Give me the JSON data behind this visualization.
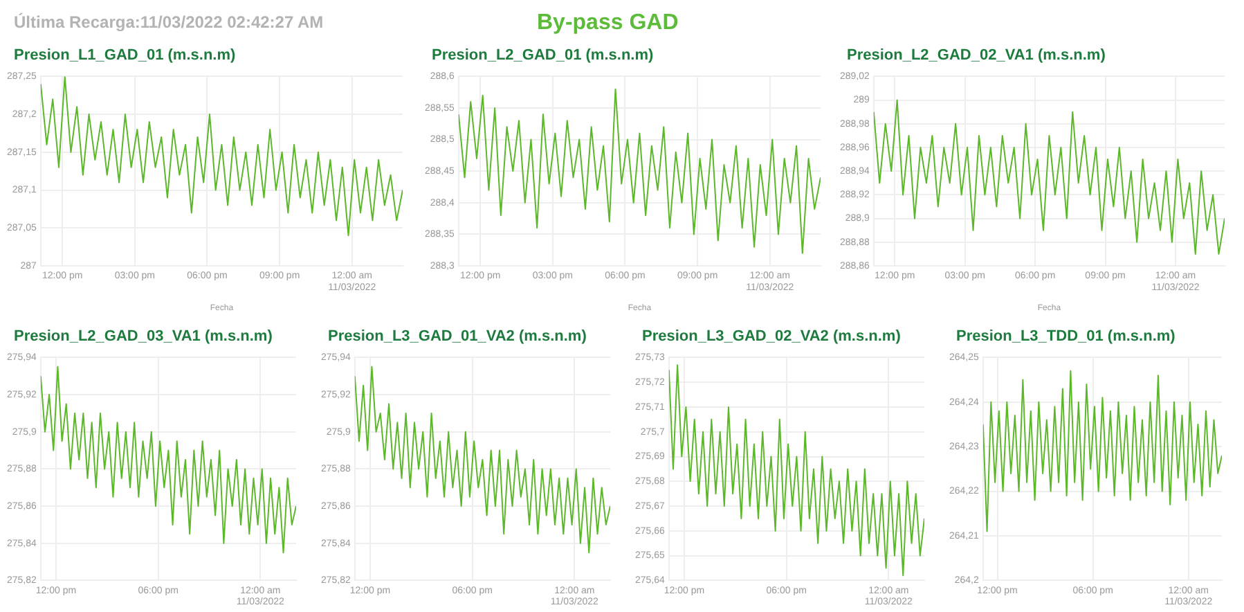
{
  "chart_data": [
    {
      "type": "line",
      "title": "Presion_L1_GAD_01 (m.s.n.m)",
      "xlabel": "Fecha",
      "annotations": [
        "Última Recarga:11/03/2022 02:42:27 AM",
        "By-pass GAD"
      ],
      "grid": true,
      "legend": false,
      "marker": "none",
      "xlim": [
        11.1,
        26.1
      ],
      "xticks": [
        {
          "value": 12,
          "label": "12:00 pm"
        },
        {
          "value": 15,
          "label": "03:00 pm"
        },
        {
          "value": 18,
          "label": "06:00 pm"
        },
        {
          "value": 21,
          "label": "09:00 pm"
        },
        {
          "value": 24,
          "label": "12:00 am\n11/03/2022"
        }
      ],
      "ylim": [
        287,
        287.25
      ],
      "yticks": [
        {
          "value": 287,
          "label": "287"
        },
        {
          "value": 287.05,
          "label": "287,05"
        },
        {
          "value": 287.1,
          "label": "287,1"
        },
        {
          "value": 287.15,
          "label": "287,15"
        },
        {
          "value": 287.2,
          "label": "287,2"
        },
        {
          "value": 287.25,
          "label": "287,25"
        }
      ],
      "x": [
        11.1,
        11.35,
        11.6,
        11.85,
        12.1,
        12.35,
        12.6,
        12.85,
        13.1,
        13.35,
        13.6,
        13.85,
        14.1,
        14.35,
        14.6,
        14.85,
        15.1,
        15.35,
        15.6,
        15.85,
        16.1,
        16.35,
        16.6,
        16.85,
        17.1,
        17.35,
        17.6,
        17.85,
        18.1,
        18.35,
        18.6,
        18.85,
        19.1,
        19.35,
        19.6,
        19.85,
        20.1,
        20.35,
        20.6,
        20.85,
        21.1,
        21.35,
        21.6,
        21.85,
        22.1,
        22.35,
        22.6,
        22.85,
        23.1,
        23.35,
        23.6,
        23.85,
        24.1,
        24.35,
        24.6,
        24.85,
        25.1,
        25.35,
        25.6,
        25.85,
        26.1
      ],
      "series": [
        {
          "color": "#5cb82a",
          "values": [
            287.24,
            287.16,
            287.22,
            287.13,
            287.25,
            287.15,
            287.21,
            287.12,
            287.2,
            287.14,
            287.19,
            287.12,
            287.18,
            287.11,
            287.2,
            287.13,
            287.18,
            287.11,
            287.19,
            287.13,
            287.17,
            287.09,
            287.18,
            287.12,
            287.16,
            287.07,
            287.17,
            287.11,
            287.2,
            287.1,
            287.16,
            287.08,
            287.17,
            287.1,
            287.15,
            287.08,
            287.16,
            287.09,
            287.18,
            287.1,
            287.15,
            287.07,
            287.16,
            287.09,
            287.14,
            287.07,
            287.15,
            287.08,
            287.14,
            287.06,
            287.13,
            287.04,
            287.14,
            287.07,
            287.13,
            287.06,
            287.14,
            287.08,
            287.12,
            287.06,
            287.1
          ]
        }
      ]
    },
    {
      "type": "line",
      "title": "Presion_L2_GAD_01 (m.s.n.m)",
      "xlabel": "Fecha",
      "grid": true,
      "legend": false,
      "marker": "none",
      "xlim": [
        11.1,
        26.1
      ],
      "xticks": [
        {
          "value": 12,
          "label": "12:00 pm"
        },
        {
          "value": 15,
          "label": "03:00 pm"
        },
        {
          "value": 18,
          "label": "06:00 pm"
        },
        {
          "value": 21,
          "label": "09:00 pm"
        },
        {
          "value": 24,
          "label": "12:00 am\n11/03/2022"
        }
      ],
      "ylim": [
        288.3,
        288.6
      ],
      "yticks": [
        {
          "value": 288.3,
          "label": "288,3"
        },
        {
          "value": 288.35,
          "label": "288,35"
        },
        {
          "value": 288.4,
          "label": "288,4"
        },
        {
          "value": 288.45,
          "label": "288,45"
        },
        {
          "value": 288.5,
          "label": "288,5"
        },
        {
          "value": 288.55,
          "label": "288,55"
        },
        {
          "value": 288.6,
          "label": "288,6"
        }
      ],
      "x": [
        11.1,
        11.35,
        11.6,
        11.85,
        12.1,
        12.35,
        12.6,
        12.85,
        13.1,
        13.35,
        13.6,
        13.85,
        14.1,
        14.35,
        14.6,
        14.85,
        15.1,
        15.35,
        15.6,
        15.85,
        16.1,
        16.35,
        16.6,
        16.85,
        17.1,
        17.35,
        17.6,
        17.85,
        18.1,
        18.35,
        18.6,
        18.85,
        19.1,
        19.35,
        19.6,
        19.85,
        20.1,
        20.35,
        20.6,
        20.85,
        21.1,
        21.35,
        21.6,
        21.85,
        22.1,
        22.35,
        22.6,
        22.85,
        23.1,
        23.35,
        23.6,
        23.85,
        24.1,
        24.35,
        24.6,
        24.85,
        25.1,
        25.35,
        25.6,
        25.85,
        26.1
      ],
      "series": [
        {
          "color": "#5cb82a",
          "values": [
            288.54,
            288.44,
            288.56,
            288.47,
            288.57,
            288.42,
            288.55,
            288.38,
            288.52,
            288.45,
            288.53,
            288.4,
            288.5,
            288.36,
            288.54,
            288.43,
            288.51,
            288.41,
            288.53,
            288.44,
            288.5,
            288.39,
            288.52,
            288.42,
            288.49,
            288.37,
            288.58,
            288.43,
            288.5,
            288.4,
            288.51,
            288.38,
            288.49,
            288.42,
            288.52,
            288.36,
            288.48,
            288.4,
            288.51,
            288.35,
            288.47,
            288.39,
            288.5,
            288.34,
            288.46,
            288.4,
            288.49,
            288.36,
            288.47,
            288.33,
            288.46,
            288.38,
            288.5,
            288.35,
            288.47,
            288.4,
            288.49,
            288.32,
            288.47,
            288.39,
            288.44
          ]
        }
      ]
    },
    {
      "type": "line",
      "title": "Presion_L2_GAD_02_VA1 (m.s.n.m)",
      "xlabel": "Fecha",
      "grid": true,
      "legend": false,
      "marker": "none",
      "xlim": [
        11.1,
        26.1
      ],
      "xticks": [
        {
          "value": 12,
          "label": "12:00 pm"
        },
        {
          "value": 15,
          "label": "03:00 pm"
        },
        {
          "value": 18,
          "label": "06:00 pm"
        },
        {
          "value": 21,
          "label": "09:00 pm"
        },
        {
          "value": 24,
          "label": "12:00 am\n11/03/2022"
        }
      ],
      "ylim": [
        288.86,
        289.02
      ],
      "yticks": [
        {
          "value": 288.86,
          "label": "288,86"
        },
        {
          "value": 288.88,
          "label": "288,88"
        },
        {
          "value": 288.9,
          "label": "288,9"
        },
        {
          "value": 288.92,
          "label": "288,92"
        },
        {
          "value": 288.94,
          "label": "288,94"
        },
        {
          "value": 288.96,
          "label": "288,96"
        },
        {
          "value": 288.98,
          "label": "288,98"
        },
        {
          "value": 289,
          "label": "289"
        },
        {
          "value": 289.02,
          "label": "289,02"
        }
      ],
      "x": [
        11.1,
        11.35,
        11.6,
        11.85,
        12.1,
        12.35,
        12.6,
        12.85,
        13.1,
        13.35,
        13.6,
        13.85,
        14.1,
        14.35,
        14.6,
        14.85,
        15.1,
        15.35,
        15.6,
        15.85,
        16.1,
        16.35,
        16.6,
        16.85,
        17.1,
        17.35,
        17.6,
        17.85,
        18.1,
        18.35,
        18.6,
        18.85,
        19.1,
        19.35,
        19.6,
        19.85,
        20.1,
        20.35,
        20.6,
        20.85,
        21.1,
        21.35,
        21.6,
        21.85,
        22.1,
        22.35,
        22.6,
        22.85,
        23.1,
        23.35,
        23.6,
        23.85,
        24.1,
        24.35,
        24.6,
        24.85,
        25.1,
        25.35,
        25.6,
        25.85,
        26.1
      ],
      "series": [
        {
          "color": "#5cb82a",
          "values": [
            288.99,
            288.93,
            288.98,
            288.94,
            289.0,
            288.92,
            288.97,
            288.9,
            288.96,
            288.93,
            288.97,
            288.91,
            288.96,
            288.93,
            288.98,
            288.92,
            288.96,
            288.89,
            288.97,
            288.92,
            288.96,
            288.91,
            288.97,
            288.93,
            288.96,
            288.9,
            288.98,
            288.92,
            288.95,
            288.89,
            288.97,
            288.92,
            288.96,
            288.9,
            288.99,
            288.93,
            288.97,
            288.92,
            288.96,
            288.89,
            288.95,
            288.91,
            288.96,
            288.9,
            288.94,
            288.88,
            288.95,
            288.9,
            288.93,
            288.89,
            288.94,
            288.88,
            288.95,
            288.9,
            288.93,
            288.87,
            288.94,
            288.89,
            288.92,
            288.87,
            288.9
          ]
        }
      ]
    },
    {
      "type": "line",
      "title": "Presion_L2_GAD_03_VA1 (m.s.n.m)",
      "grid": true,
      "legend": false,
      "marker": "none",
      "xlim": [
        11.1,
        26.1
      ],
      "xticks": [
        {
          "value": 12,
          "label": "12:00 pm"
        },
        {
          "value": 18,
          "label": "06:00 pm"
        },
        {
          "value": 24,
          "label": "12:00 am\n11/03/2022"
        }
      ],
      "ylim": [
        275.82,
        275.94
      ],
      "yticks": [
        {
          "value": 275.82,
          "label": "275,82"
        },
        {
          "value": 275.84,
          "label": "275,84"
        },
        {
          "value": 275.86,
          "label": "275,86"
        },
        {
          "value": 275.88,
          "label": "275,88"
        },
        {
          "value": 275.9,
          "label": "275,9"
        },
        {
          "value": 275.92,
          "label": "275,92"
        },
        {
          "value": 275.94,
          "label": "275,94"
        }
      ],
      "x": [
        11.1,
        11.35,
        11.6,
        11.85,
        12.1,
        12.35,
        12.6,
        12.85,
        13.1,
        13.35,
        13.6,
        13.85,
        14.1,
        14.35,
        14.6,
        14.85,
        15.1,
        15.35,
        15.6,
        15.85,
        16.1,
        16.35,
        16.6,
        16.85,
        17.1,
        17.35,
        17.6,
        17.85,
        18.1,
        18.35,
        18.6,
        18.85,
        19.1,
        19.35,
        19.6,
        19.85,
        20.1,
        20.35,
        20.6,
        20.85,
        21.1,
        21.35,
        21.6,
        21.85,
        22.1,
        22.35,
        22.6,
        22.85,
        23.1,
        23.35,
        23.6,
        23.85,
        24.1,
        24.35,
        24.6,
        24.85,
        25.1,
        25.35,
        25.6,
        25.85,
        26.1
      ],
      "series": [
        {
          "color": "#5cb82a",
          "values": [
            275.93,
            275.9,
            275.92,
            275.89,
            275.935,
            275.895,
            275.915,
            275.88,
            275.91,
            275.885,
            275.91,
            275.875,
            275.905,
            275.87,
            275.91,
            275.88,
            275.9,
            275.865,
            275.905,
            275.875,
            275.9,
            275.87,
            275.905,
            275.865,
            275.895,
            275.875,
            275.9,
            275.86,
            275.895,
            275.87,
            275.89,
            275.85,
            275.895,
            275.865,
            275.885,
            275.845,
            275.89,
            275.86,
            275.895,
            275.865,
            275.885,
            275.855,
            275.89,
            275.84,
            275.88,
            275.86,
            275.885,
            275.85,
            275.88,
            275.845,
            275.875,
            275.85,
            275.88,
            275.84,
            275.875,
            275.845,
            275.87,
            275.835,
            275.875,
            275.85,
            275.86
          ]
        }
      ]
    },
    {
      "type": "line",
      "title": "Presion_L3_GAD_01_VA2 (m.s.n.m)",
      "grid": true,
      "legend": false,
      "marker": "none",
      "xlim": [
        11.1,
        26.1
      ],
      "xticks": [
        {
          "value": 12,
          "label": "12:00 pm"
        },
        {
          "value": 18,
          "label": "06:00 pm"
        },
        {
          "value": 24,
          "label": "12:00 am\n11/03/2022"
        }
      ],
      "ylim": [
        275.82,
        275.94
      ],
      "yticks": [
        {
          "value": 275.82,
          "label": "275,82"
        },
        {
          "value": 275.84,
          "label": "275,84"
        },
        {
          "value": 275.86,
          "label": "275,86"
        },
        {
          "value": 275.88,
          "label": "275,88"
        },
        {
          "value": 275.9,
          "label": "275,9"
        },
        {
          "value": 275.92,
          "label": "275,92"
        },
        {
          "value": 275.94,
          "label": "275,94"
        }
      ],
      "x": [
        11.1,
        11.35,
        11.6,
        11.85,
        12.1,
        12.35,
        12.6,
        12.85,
        13.1,
        13.35,
        13.6,
        13.85,
        14.1,
        14.35,
        14.6,
        14.85,
        15.1,
        15.35,
        15.6,
        15.85,
        16.1,
        16.35,
        16.6,
        16.85,
        17.1,
        17.35,
        17.6,
        17.85,
        18.1,
        18.35,
        18.6,
        18.85,
        19.1,
        19.35,
        19.6,
        19.85,
        20.1,
        20.35,
        20.6,
        20.85,
        21.1,
        21.35,
        21.6,
        21.85,
        22.1,
        22.35,
        22.6,
        22.85,
        23.1,
        23.35,
        23.6,
        23.85,
        24.1,
        24.35,
        24.6,
        24.85,
        25.1,
        25.35,
        25.6,
        25.85,
        26.1
      ],
      "series": [
        {
          "color": "#5cb82a",
          "values": [
            275.93,
            275.895,
            275.925,
            275.89,
            275.935,
            275.9,
            275.91,
            275.885,
            275.915,
            275.88,
            275.905,
            275.875,
            275.91,
            275.87,
            275.905,
            275.88,
            275.9,
            275.865,
            275.91,
            275.875,
            275.895,
            275.865,
            275.9,
            275.87,
            275.89,
            275.86,
            275.9,
            275.865,
            275.895,
            275.87,
            275.885,
            275.855,
            275.89,
            275.86,
            275.89,
            275.845,
            275.885,
            275.86,
            275.89,
            275.865,
            275.88,
            275.85,
            275.885,
            275.845,
            275.88,
            275.855,
            275.88,
            275.85,
            275.875,
            275.845,
            275.875,
            275.85,
            275.88,
            275.84,
            275.87,
            275.835,
            275.875,
            275.845,
            275.87,
            275.85,
            275.86
          ]
        }
      ]
    },
    {
      "type": "line",
      "title": "Presion_L3_GAD_02_VA2 (m.s.n.m)",
      "grid": true,
      "legend": false,
      "marker": "none",
      "xlim": [
        11.1,
        26.1
      ],
      "xticks": [
        {
          "value": 12,
          "label": "12:00 pm"
        },
        {
          "value": 18,
          "label": "06:00 pm"
        },
        {
          "value": 24,
          "label": "12:00 am\n11/03/2022"
        }
      ],
      "ylim": [
        275.64,
        275.73
      ],
      "yticks": [
        {
          "value": 275.64,
          "label": "275,64"
        },
        {
          "value": 275.65,
          "label": "275,65"
        },
        {
          "value": 275.66,
          "label": "275,66"
        },
        {
          "value": 275.67,
          "label": "275,67"
        },
        {
          "value": 275.68,
          "label": "275,68"
        },
        {
          "value": 275.69,
          "label": "275,69"
        },
        {
          "value": 275.7,
          "label": "275,7"
        },
        {
          "value": 275.71,
          "label": "275,71"
        },
        {
          "value": 275.72,
          "label": "275,72"
        },
        {
          "value": 275.73,
          "label": "275,73"
        }
      ],
      "x": [
        11.1,
        11.35,
        11.6,
        11.85,
        12.1,
        12.35,
        12.6,
        12.85,
        13.1,
        13.35,
        13.6,
        13.85,
        14.1,
        14.35,
        14.6,
        14.85,
        15.1,
        15.35,
        15.6,
        15.85,
        16.1,
        16.35,
        16.6,
        16.85,
        17.1,
        17.35,
        17.6,
        17.85,
        18.1,
        18.35,
        18.6,
        18.85,
        19.1,
        19.35,
        19.6,
        19.85,
        20.1,
        20.35,
        20.6,
        20.85,
        21.1,
        21.35,
        21.6,
        21.85,
        22.1,
        22.35,
        22.6,
        22.85,
        23.1,
        23.35,
        23.6,
        23.85,
        24.1,
        24.35,
        24.6,
        24.85,
        25.1,
        25.35,
        25.6,
        25.85,
        26.1
      ],
      "series": [
        {
          "color": "#5cb82a",
          "values": [
            275.725,
            275.685,
            275.727,
            275.69,
            275.71,
            275.68,
            275.705,
            275.675,
            275.7,
            275.67,
            275.705,
            275.675,
            275.7,
            275.67,
            275.71,
            275.675,
            275.695,
            275.665,
            275.705,
            275.67,
            275.695,
            275.665,
            275.7,
            275.67,
            275.69,
            275.66,
            275.705,
            275.665,
            275.695,
            275.67,
            275.69,
            275.66,
            275.7,
            275.665,
            275.685,
            275.655,
            275.69,
            275.66,
            275.685,
            275.665,
            275.68,
            275.655,
            275.685,
            275.66,
            275.68,
            275.65,
            275.685,
            275.655,
            275.675,
            275.65,
            275.675,
            275.645,
            275.68,
            275.65,
            275.675,
            275.642,
            275.68,
            275.655,
            275.675,
            275.65,
            275.665
          ]
        }
      ]
    },
    {
      "type": "line",
      "title": "Presion_L3_TDD_01 (m.s.n.m)",
      "grid": true,
      "legend": false,
      "marker": "none",
      "xlim": [
        11.1,
        26.1
      ],
      "xticks": [
        {
          "value": 12,
          "label": "12:00 pm"
        },
        {
          "value": 18,
          "label": "06:00 pm"
        },
        {
          "value": 24,
          "label": "12:00 am\n11/03/2022"
        }
      ],
      "ylim": [
        264.2,
        264.25
      ],
      "yticks": [
        {
          "value": 264.2,
          "label": "264,2"
        },
        {
          "value": 264.21,
          "label": "264,21"
        },
        {
          "value": 264.22,
          "label": "264,22"
        },
        {
          "value": 264.23,
          "label": "264,23"
        },
        {
          "value": 264.24,
          "label": "264,24"
        },
        {
          "value": 264.25,
          "label": "264,25"
        }
      ],
      "x": [
        11.1,
        11.35,
        11.6,
        11.85,
        12.1,
        12.35,
        12.6,
        12.85,
        13.1,
        13.35,
        13.6,
        13.85,
        14.1,
        14.35,
        14.6,
        14.85,
        15.1,
        15.35,
        15.6,
        15.85,
        16.1,
        16.35,
        16.6,
        16.85,
        17.1,
        17.35,
        17.6,
        17.85,
        18.1,
        18.35,
        18.6,
        18.85,
        19.1,
        19.35,
        19.6,
        19.85,
        20.1,
        20.35,
        20.6,
        20.85,
        21.1,
        21.35,
        21.6,
        21.85,
        22.1,
        22.35,
        22.6,
        22.85,
        23.1,
        23.35,
        23.6,
        23.85,
        24.1,
        24.35,
        24.6,
        24.85,
        25.1,
        25.35,
        25.6,
        25.85,
        26.1
      ],
      "series": [
        {
          "color": "#5cb82a",
          "values": [
            264.235,
            264.211,
            264.24,
            264.222,
            264.238,
            264.22,
            264.24,
            264.224,
            264.237,
            264.22,
            264.245,
            264.222,
            264.238,
            264.218,
            264.24,
            264.224,
            264.236,
            264.22,
            264.239,
            264.222,
            264.243,
            264.219,
            264.247,
            264.222,
            264.24,
            264.218,
            264.244,
            264.225,
            264.239,
            264.22,
            264.241,
            264.223,
            264.238,
            264.219,
            264.24,
            264.224,
            264.237,
            264.218,
            264.239,
            264.222,
            264.236,
            264.219,
            264.24,
            264.222,
            264.246,
            264.22,
            264.238,
            264.217,
            264.24,
            264.223,
            264.237,
            264.218,
            264.24,
            264.222,
            264.235,
            264.219,
            264.238,
            264.221,
            264.236,
            264.224,
            264.228
          ]
        }
      ]
    }
  ]
}
